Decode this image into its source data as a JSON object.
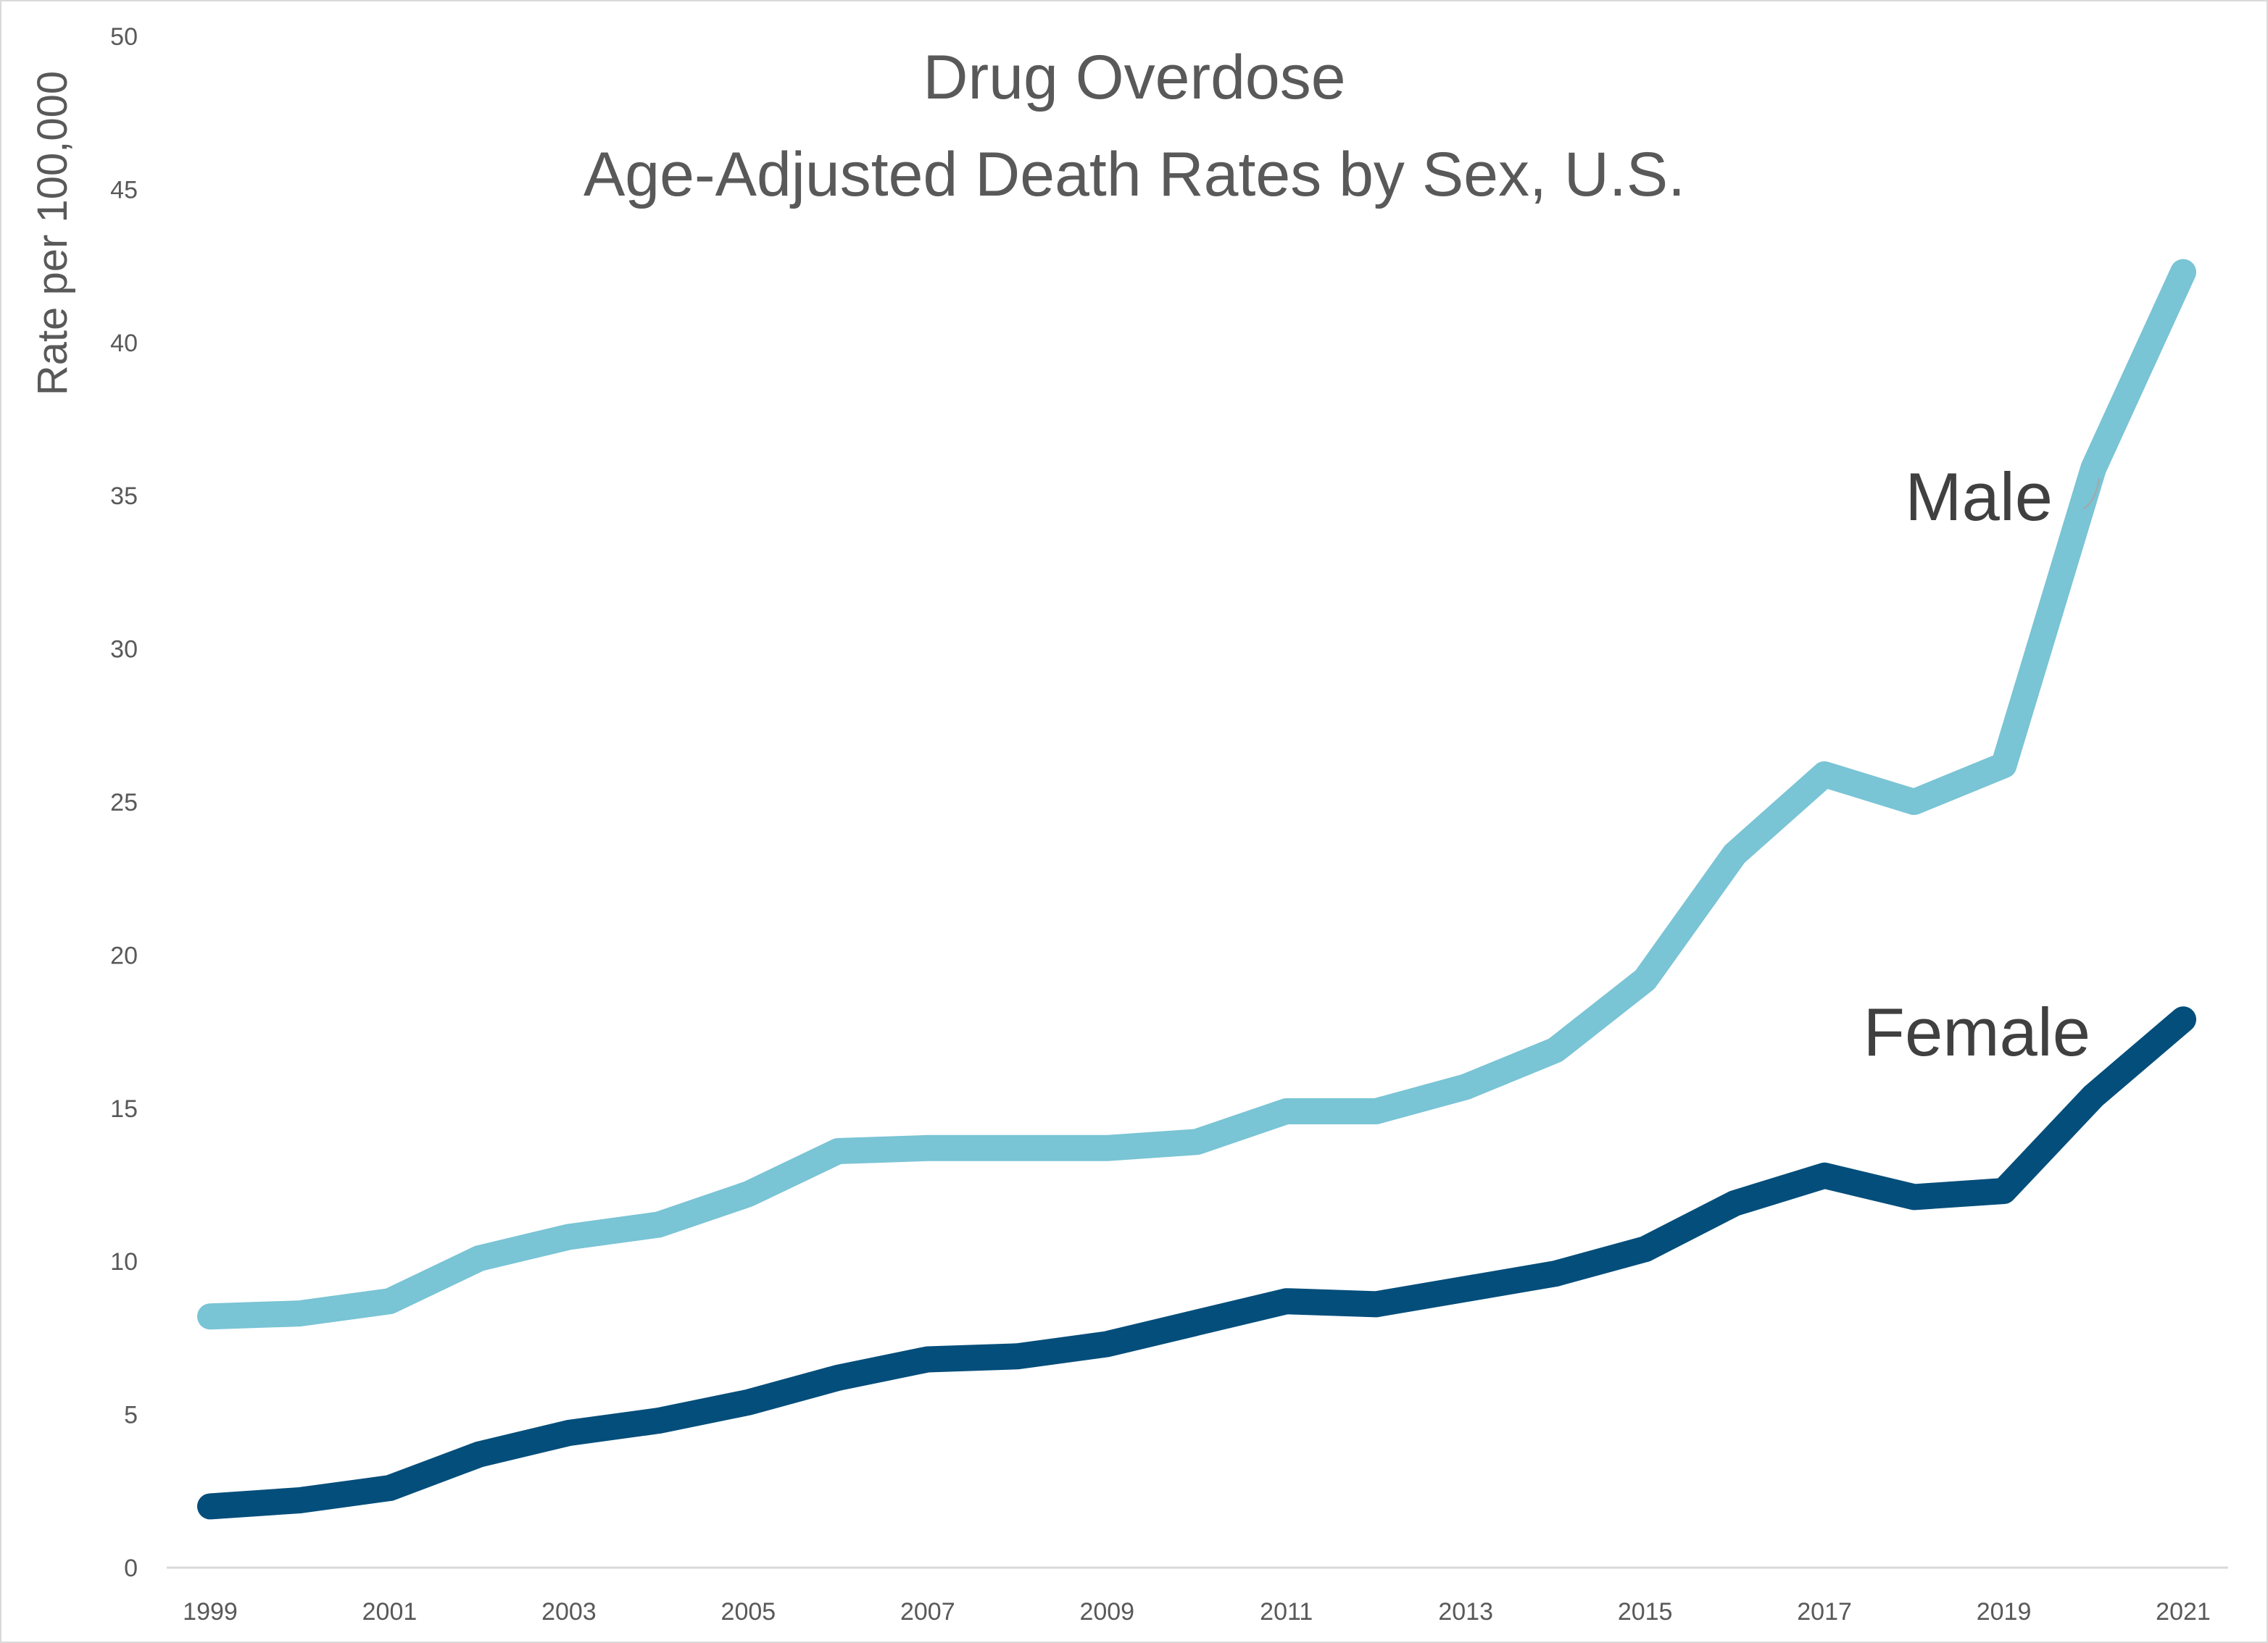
{
  "chart_data": {
    "type": "line",
    "title": [
      "Drug Overdose",
      "Age-Adjusted Death Rates by Sex, U.S."
    ],
    "xlabel": "",
    "ylabel": "Rate per 100,000",
    "ylim": [
      0,
      50
    ],
    "yticks": [
      0,
      5,
      10,
      15,
      20,
      25,
      30,
      35,
      40,
      45,
      50
    ],
    "x": [
      1999,
      2000,
      2001,
      2002,
      2003,
      2004,
      2005,
      2006,
      2007,
      2008,
      2009,
      2010,
      2011,
      2012,
      2013,
      2014,
      2015,
      2016,
      2017,
      2018,
      2019,
      2020,
      2021
    ],
    "xtick_labels": [
      "1999",
      "2001",
      "2003",
      "2005",
      "2007",
      "2009",
      "2011",
      "2013",
      "2015",
      "2017",
      "2019",
      "2021"
    ],
    "grid": false,
    "legend": "none",
    "series": [
      {
        "name": "Male",
        "color": "#79c4d5",
        "values": [
          8.2,
          8.3,
          8.7,
          10.1,
          10.8,
          11.2,
          12.2,
          13.6,
          13.7,
          13.7,
          13.7,
          13.9,
          14.9,
          14.9,
          15.7,
          16.9,
          19.2,
          23.3,
          25.9,
          25.0,
          26.2,
          35.9,
          42.3
        ]
      },
      {
        "name": "Female",
        "color": "#034e7b",
        "values": [
          2.0,
          2.2,
          2.6,
          3.7,
          4.4,
          4.8,
          5.4,
          6.2,
          6.8,
          6.9,
          7.3,
          8.0,
          8.7,
          8.6,
          9.1,
          9.6,
          10.4,
          11.9,
          12.8,
          12.1,
          12.3,
          15.4,
          17.9
        ]
      }
    ]
  }
}
